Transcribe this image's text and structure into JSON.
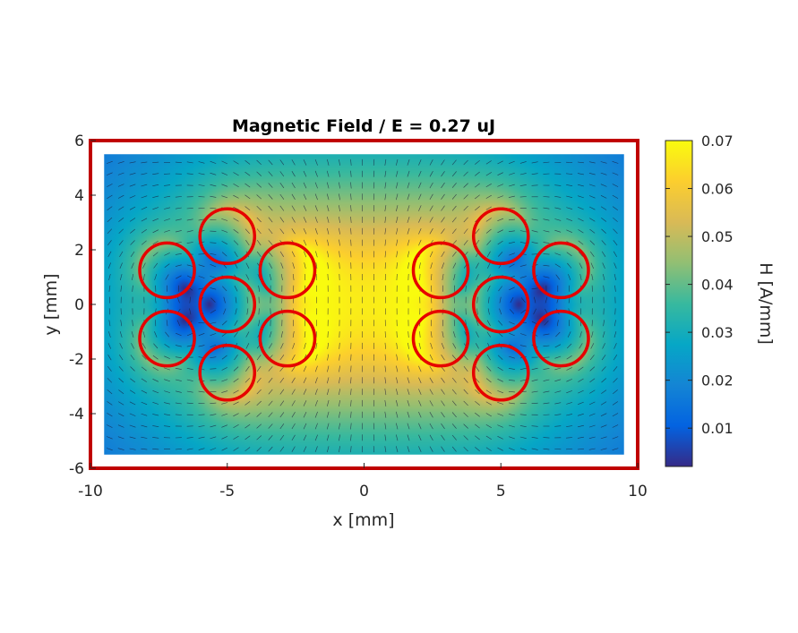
{
  "chart_data": {
    "type": "heatmap",
    "title": "Magnetic Field  / E = 0.27 uJ",
    "xlabel": "x [mm]",
    "ylabel": "y [mm]",
    "xlim": [
      -10,
      10
    ],
    "ylim": [
      -6,
      6
    ],
    "xticks": [
      "-10",
      "-5",
      "0",
      "5",
      "10"
    ],
    "yticks": [
      "-6",
      "-4",
      "-2",
      "0",
      "2",
      "4",
      "6"
    ],
    "field_extent": {
      "x": [
        -9.5,
        9.5
      ],
      "y": [
        -5.5,
        5.5
      ]
    },
    "colorbar": {
      "label": "H [A/mm]",
      "range": [
        0.002,
        0.07
      ],
      "ticks": [
        "0.01",
        "0.02",
        "0.03",
        "0.04",
        "0.05",
        "0.06",
        "0.07"
      ],
      "colormap": "parula"
    },
    "conductors": [
      {
        "x": -7.2,
        "y": 1.25
      },
      {
        "x": -7.2,
        "y": -1.25
      },
      {
        "x": -5.0,
        "y": 2.5
      },
      {
        "x": -5.0,
        "y": 0.0
      },
      {
        "x": -5.0,
        "y": -2.5
      },
      {
        "x": -2.8,
        "y": 1.25
      },
      {
        "x": -2.8,
        "y": -1.25
      },
      {
        "x": 2.8,
        "y": 1.25
      },
      {
        "x": 2.8,
        "y": -1.25
      },
      {
        "x": 5.0,
        "y": 2.5
      },
      {
        "x": 5.0,
        "y": 0.0
      },
      {
        "x": 5.0,
        "y": -2.5
      },
      {
        "x": 7.2,
        "y": 1.25
      },
      {
        "x": 7.2,
        "y": -1.25
      }
    ],
    "conductor_radius": 1.0,
    "boundary_box": {
      "x": [
        -10,
        10
      ],
      "y": [
        -6,
        6
      ]
    },
    "colors": {
      "conductor": "#e60000",
      "boundary": "#c00000",
      "arrows": "#1a1a3a"
    },
    "grid": false
  }
}
